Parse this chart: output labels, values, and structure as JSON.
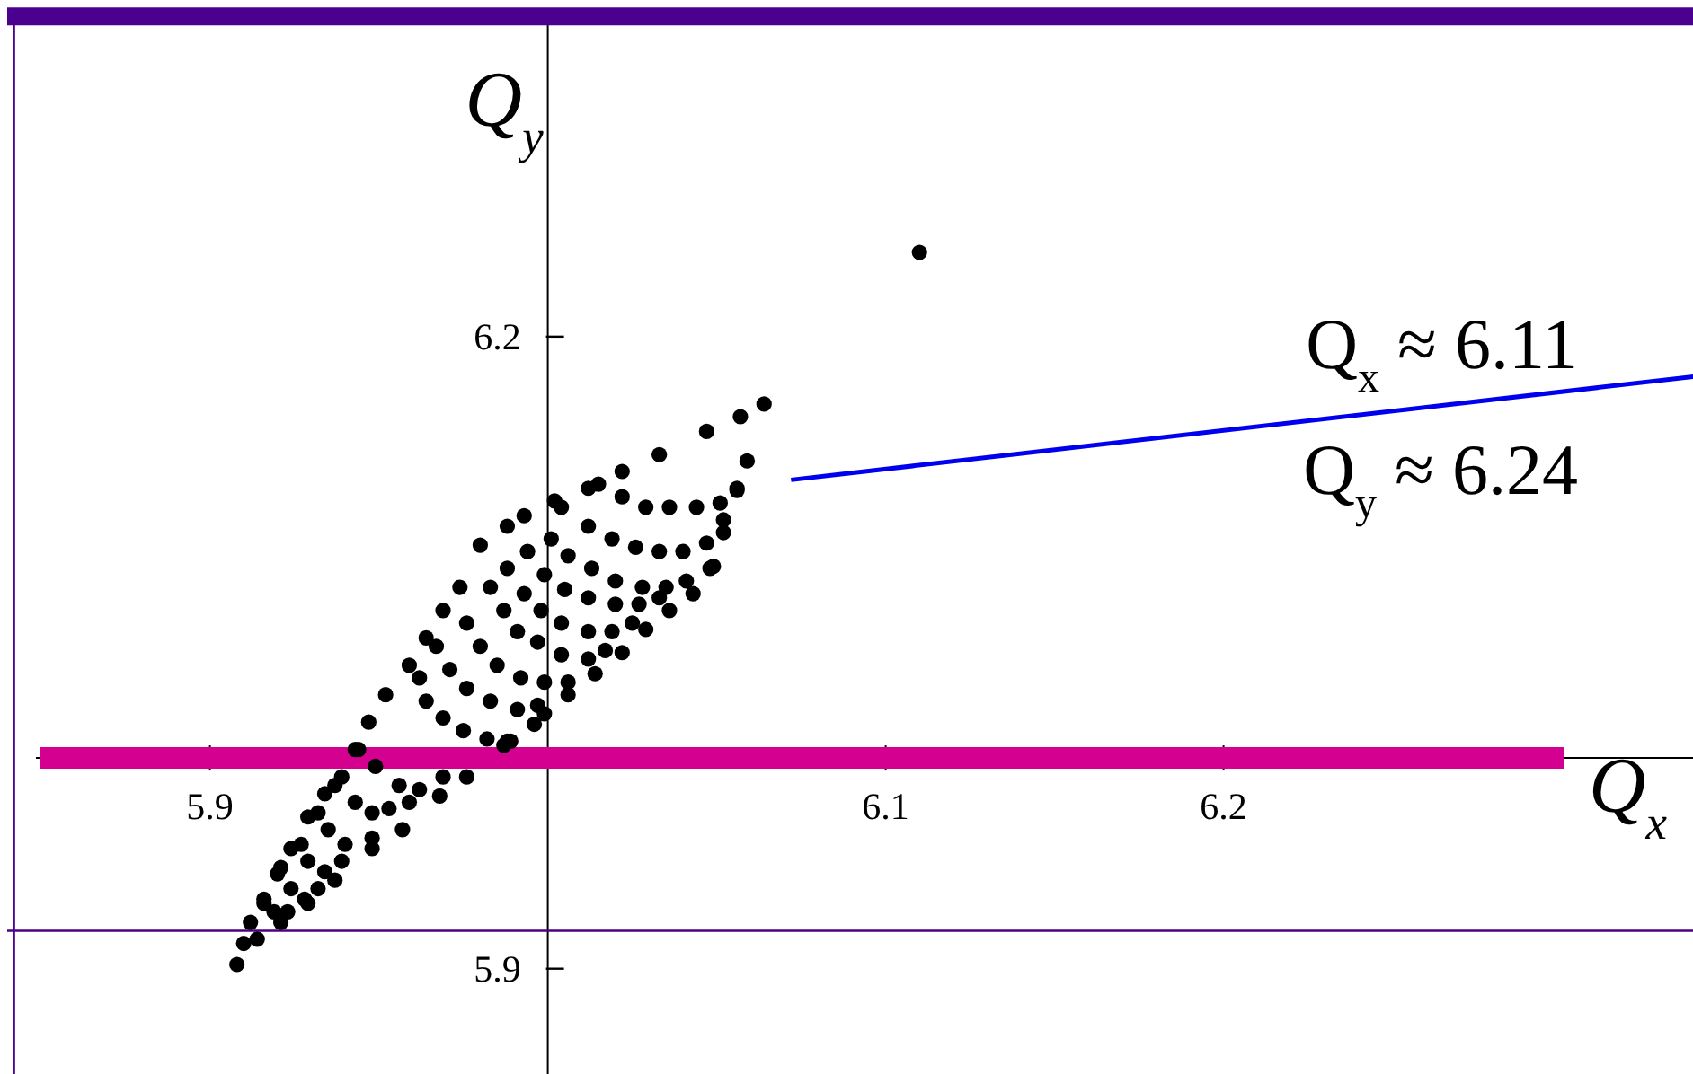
{
  "chart_data": {
    "type": "scatter",
    "xlabel": "Q$_{x}$",
    "ylabel": "Q$_{y}$",
    "xlim": [
      5.84,
      6.34
    ],
    "ylim": [
      5.85,
      6.355
    ],
    "xticks": [
      5.9,
      6.1,
      6.2
    ],
    "yticks": [
      5.9,
      6.2
    ],
    "series": [
      {
        "type": "line",
        "color": "#0000ee",
        "x": [
          6.072,
          6.339
        ],
        "values": [
          6.132,
          6.181
        ]
      },
      {
        "color": "#000000",
        "marker": "circle",
        "x": [
          6.064,
          6.057,
          6.047,
          6.033,
          6.022,
          6.012,
          6.002,
          5.993,
          5.988,
          5.98,
          5.974,
          5.969,
          5.964,
          5.959,
          5.952,
          5.947,
          5.943,
          5.939,
          5.934,
          5.929,
          5.924,
          5.92,
          5.916,
          5.912,
          5.91,
          5.908,
          6.059,
          6.056,
          6.052,
          6.049,
          6.043,
          6.036,
          6.029,
          6.022,
          6.014,
          6.006,
          5.999,
          5.996,
          5.988,
          5.987,
          5.976,
          5.968,
          5.957,
          5.948,
          5.937,
          5.929,
          5.921,
          5.914,
          6.015,
          6.022,
          6.029,
          6.036,
          6.044,
          6.051,
          6.056,
          6.004,
          6.012,
          6.019,
          6.026,
          6.033,
          6.04,
          6.047,
          6.052,
          6.001,
          6.006,
          6.013,
          6.02,
          6.028,
          6.035,
          6.041,
          6.048,
          5.994,
          5.999,
          6.005,
          6.012,
          6.02,
          6.027,
          6.033,
          5.988,
          5.993,
          5.998,
          6.004,
          6.012,
          6.019,
          6.025,
          5.983,
          5.987,
          5.991,
          5.997,
          6.004,
          6.012,
          6.017,
          5.976,
          5.98,
          5.985,
          5.992,
          5.999,
          6.006,
          5.967,
          5.971,
          5.976,
          5.983,
          5.991,
          5.997,
          5.962,
          5.964,
          5.969,
          5.975,
          5.982,
          5.989,
          5.944,
          5.949,
          5.956,
          5.962,
          5.969,
          5.937,
          5.943,
          5.948,
          5.953,
          5.959,
          5.932,
          5.935,
          5.94,
          5.948,
          5.927,
          5.929,
          5.934,
          5.939,
          5.921,
          5.924,
          5.928,
          5.932,
          5.916,
          5.919,
          5.923,
          6.11
        ],
        "values": [
          6.168,
          6.162,
          6.155,
          6.144,
          6.136,
          6.128,
          6.122,
          6.115,
          6.11,
          6.101,
          6.081,
          6.07,
          6.057,
          6.044,
          6.03,
          6.017,
          6.004,
          5.991,
          5.983,
          5.972,
          5.957,
          5.945,
          5.931,
          5.922,
          5.912,
          5.902,
          6.141,
          6.128,
          6.113,
          6.091,
          6.078,
          6.07,
          6.061,
          6.05,
          6.04,
          6.03,
          6.021,
          6.016,
          6.008,
          6.006,
          5.991,
          5.982,
          5.966,
          5.957,
          5.942,
          5.931,
          5.922,
          5.914,
          6.13,
          6.124,
          6.119,
          6.119,
          6.119,
          6.121,
          6.127,
          6.119,
          6.11,
          6.104,
          6.1,
          6.098,
          6.098,
          6.102,
          6.107,
          6.104,
          6.096,
          6.09,
          6.084,
          6.081,
          6.081,
          6.084,
          6.09,
          6.098,
          6.087,
          6.08,
          6.076,
          6.073,
          6.073,
          6.076,
          6.09,
          6.078,
          6.07,
          6.064,
          6.06,
          6.06,
          6.064,
          6.081,
          6.07,
          6.06,
          6.055,
          6.049,
          6.047,
          6.051,
          6.064,
          6.053,
          6.044,
          6.038,
          6.036,
          6.036,
          6.053,
          6.042,
          6.033,
          6.027,
          6.023,
          6.025,
          6.038,
          6.027,
          6.019,
          6.013,
          6.009,
          6.008,
          6.004,
          5.996,
          5.987,
          5.985,
          5.991,
          5.987,
          5.979,
          5.974,
          5.976,
          5.979,
          5.974,
          5.966,
          5.959,
          5.962,
          5.959,
          5.951,
          5.946,
          5.951,
          5.948,
          5.938,
          5.933,
          5.938,
          5.933,
          5.927,
          5.927,
          6.24
        ]
      }
    ],
    "annotations": [
      "Q$_{x}$ ≈ 6.11",
      "Q$_{y}$ ≈ 6.24"
    ],
    "ref_lines": [
      {
        "axis": "y",
        "value": 6.0,
        "color": "#d4008f"
      },
      {
        "axis": "y",
        "value": 5.918,
        "color": "#4b0082"
      },
      {
        "axis": "y",
        "value": 6.352,
        "color": "#4b0090"
      },
      {
        "axis": "x",
        "value": 5.842,
        "color": "#4b0090"
      }
    ]
  }
}
